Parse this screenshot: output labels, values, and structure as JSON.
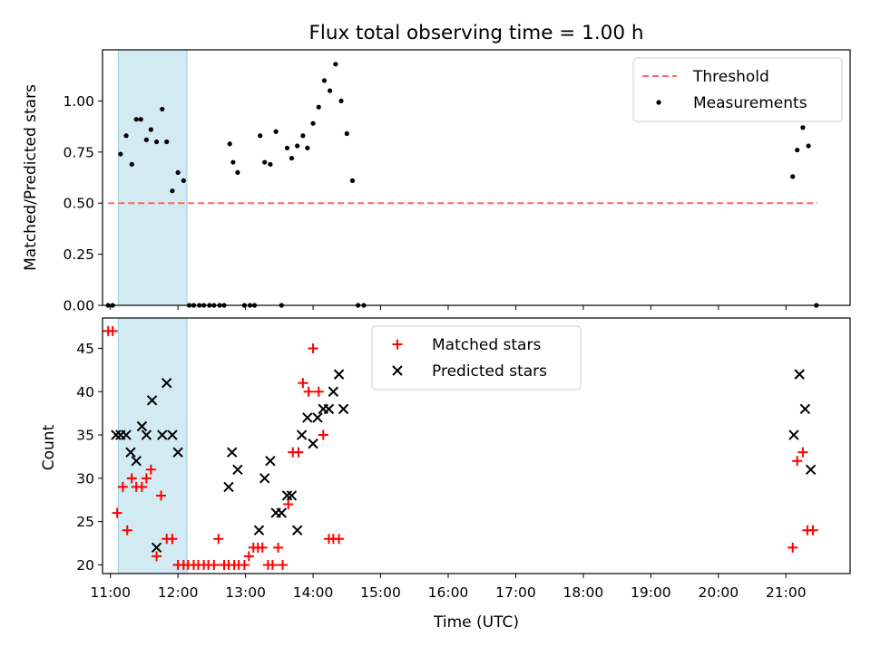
{
  "figure": {
    "title": "Flux total observing time = 1.00 h",
    "xlabel": "Time (UTC)"
  },
  "chart_data": [
    {
      "type": "scatter",
      "panel": "top",
      "ylabel": "Matched/Predicted stars",
      "xlim": [
        "10:53",
        "21:57"
      ],
      "ylim": [
        0,
        1.25
      ],
      "yticks": [
        "0.00",
        "0.25",
        "0.50",
        "0.75",
        "1.00"
      ],
      "highlight_span": [
        "11:07",
        "12:08"
      ],
      "highlight_color": "#add8e6",
      "legend": {
        "placement": "upper right",
        "entries": [
          "Threshold",
          "Measurements"
        ]
      },
      "series": [
        {
          "name": "Threshold",
          "kind": "dashed-line",
          "color": "#ff6666",
          "points": [
            [
              "10:58",
              0.5
            ],
            [
              "21:28",
              0.5
            ]
          ]
        },
        {
          "name": "Measurements",
          "kind": "dots",
          "color": "#000000",
          "points": [
            [
              "10:58",
              0
            ],
            [
              "11:02",
              0
            ],
            [
              "11:09",
              0.74
            ],
            [
              "11:14",
              0.83
            ],
            [
              "11:19",
              0.69
            ],
            [
              "11:23",
              0.91
            ],
            [
              "11:27",
              0.91
            ],
            [
              "11:32",
              0.81
            ],
            [
              "11:36",
              0.86
            ],
            [
              "11:41",
              0.8
            ],
            [
              "11:46",
              0.96
            ],
            [
              "11:50",
              0.8
            ],
            [
              "11:55",
              0.56
            ],
            [
              "12:00",
              0.65
            ],
            [
              "12:05",
              0.61
            ],
            [
              "12:10",
              0
            ],
            [
              "12:14",
              0
            ],
            [
              "12:19",
              0
            ],
            [
              "12:23",
              0
            ],
            [
              "12:28",
              0
            ],
            [
              "12:32",
              0
            ],
            [
              "12:37",
              0
            ],
            [
              "12:41",
              0
            ],
            [
              "12:46",
              0.79
            ],
            [
              "12:49",
              0.7
            ],
            [
              "12:53",
              0.65
            ],
            [
              "12:59",
              0
            ],
            [
              "13:04",
              0
            ],
            [
              "13:08",
              0
            ],
            [
              "13:13",
              0.83
            ],
            [
              "13:17",
              0.7
            ],
            [
              "13:22",
              0.69
            ],
            [
              "13:27",
              0.85
            ],
            [
              "13:32",
              0
            ],
            [
              "13:37",
              0.77
            ],
            [
              "13:41",
              0.72
            ],
            [
              "13:46",
              0.78
            ],
            [
              "13:51",
              0.83
            ],
            [
              "13:55",
              0.77
            ],
            [
              "14:00",
              0.89
            ],
            [
              "14:05",
              0.97
            ],
            [
              "14:10",
              1.1
            ],
            [
              "14:15",
              1.05
            ],
            [
              "14:20",
              1.18
            ],
            [
              "14:25",
              1.0
            ],
            [
              "14:30",
              0.84
            ],
            [
              "14:35",
              0.61
            ],
            [
              "14:40",
              0
            ],
            [
              "14:45",
              0
            ],
            [
              "21:06",
              0.63
            ],
            [
              "21:10",
              0.76
            ],
            [
              "21:15",
              0.87
            ],
            [
              "21:20",
              0.78
            ],
            [
              "21:27",
              0
            ]
          ]
        }
      ]
    },
    {
      "type": "scatter",
      "panel": "bottom",
      "ylabel": "Count",
      "xlabel": "Time (UTC)",
      "xlim": [
        "10:53",
        "21:57"
      ],
      "ylim": [
        19,
        48.5
      ],
      "yticks": [
        "20",
        "25",
        "30",
        "35",
        "40",
        "45"
      ],
      "xticks": [
        "11:00",
        "12:00",
        "13:00",
        "14:00",
        "15:00",
        "16:00",
        "17:00",
        "18:00",
        "19:00",
        "20:00",
        "21:00"
      ],
      "highlight_span": [
        "11:07",
        "12:08"
      ],
      "highlight_color": "#add8e6",
      "legend": {
        "placement": "upper center",
        "entries": [
          "Matched stars",
          "Predicted stars"
        ]
      },
      "series": [
        {
          "name": "Matched stars",
          "marker": "+",
          "color": "#ff0000",
          "points": [
            [
              "10:58",
              47
            ],
            [
              "11:02",
              47
            ],
            [
              "11:06",
              26
            ],
            [
              "11:11",
              29
            ],
            [
              "11:15",
              24
            ],
            [
              "11:19",
              30
            ],
            [
              "11:23",
              29
            ],
            [
              "11:28",
              29
            ],
            [
              "11:32",
              30
            ],
            [
              "11:36",
              31
            ],
            [
              "11:41",
              21
            ],
            [
              "11:45",
              28
            ],
            [
              "11:50",
              23
            ],
            [
              "11:55",
              23
            ],
            [
              "12:00",
              20
            ],
            [
              "12:05",
              20
            ],
            [
              "12:09",
              20
            ],
            [
              "12:14",
              20
            ],
            [
              "12:18",
              20
            ],
            [
              "12:23",
              20
            ],
            [
              "12:27",
              20
            ],
            [
              "12:32",
              20
            ],
            [
              "12:36",
              23
            ],
            [
              "12:41",
              20
            ],
            [
              "12:45",
              20
            ],
            [
              "12:50",
              20
            ],
            [
              "12:54",
              20
            ],
            [
              "12:59",
              20
            ],
            [
              "13:03",
              21
            ],
            [
              "13:07",
              22
            ],
            [
              "13:11",
              22
            ],
            [
              "13:15",
              22
            ],
            [
              "13:20",
              20
            ],
            [
              "13:24",
              20
            ],
            [
              "13:29",
              22
            ],
            [
              "13:33",
              20
            ],
            [
              "13:38",
              27
            ],
            [
              "13:42",
              33
            ],
            [
              "13:47",
              33
            ],
            [
              "13:51",
              41
            ],
            [
              "13:56",
              40
            ],
            [
              "14:00",
              45
            ],
            [
              "14:05",
              40
            ],
            [
              "14:09",
              35
            ],
            [
              "14:14",
              23
            ],
            [
              "14:18",
              23
            ],
            [
              "14:23",
              23
            ],
            [
              "21:06",
              22
            ],
            [
              "21:10",
              32
            ],
            [
              "21:15",
              33
            ],
            [
              "21:19",
              24
            ],
            [
              "21:24",
              24
            ]
          ]
        },
        {
          "name": "Predicted stars",
          "marker": "x",
          "color": "#000000",
          "points": [
            [
              "11:05",
              35
            ],
            [
              "11:09",
              35
            ],
            [
              "11:14",
              35
            ],
            [
              "11:18",
              33
            ],
            [
              "11:23",
              32
            ],
            [
              "11:28",
              36
            ],
            [
              "11:32",
              35
            ],
            [
              "11:37",
              39
            ],
            [
              "11:41",
              22
            ],
            [
              "11:46",
              35
            ],
            [
              "11:50",
              41
            ],
            [
              "11:55",
              35
            ],
            [
              "12:00",
              33
            ],
            [
              "12:45",
              29
            ],
            [
              "12:48",
              33
            ],
            [
              "12:53",
              31
            ],
            [
              "13:12",
              24
            ],
            [
              "13:17",
              30
            ],
            [
              "13:22",
              32
            ],
            [
              "13:27",
              26
            ],
            [
              "13:32",
              26
            ],
            [
              "13:37",
              28
            ],
            [
              "13:41",
              28
            ],
            [
              "13:46",
              24
            ],
            [
              "13:50",
              35
            ],
            [
              "13:55",
              37
            ],
            [
              "14:00",
              34
            ],
            [
              "14:04",
              37
            ],
            [
              "14:09",
              38
            ],
            [
              "14:14",
              38
            ],
            [
              "14:18",
              40
            ],
            [
              "14:23",
              42
            ],
            [
              "14:27",
              38
            ],
            [
              "21:07",
              35
            ],
            [
              "21:12",
              42
            ],
            [
              "21:17",
              38
            ],
            [
              "21:22",
              31
            ]
          ]
        }
      ]
    }
  ]
}
